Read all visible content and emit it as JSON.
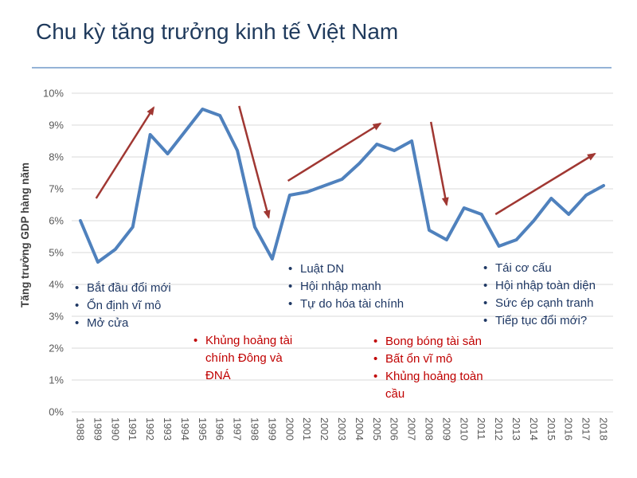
{
  "slide": {
    "title": "Chu kỳ tăng trưởng kinh tế Việt Nam",
    "title_color": "#1F3A5C",
    "divider_color": "#95B3D7",
    "background": "#FFFFFF"
  },
  "chart_data": {
    "type": "line",
    "title": "Chu kỳ tăng trưởng kinh tế Việt Nam",
    "xlabel": "",
    "ylabel": "Tăng trưởng GDP hàng năm",
    "x": [
      1988,
      1989,
      1990,
      1991,
      1992,
      1993,
      1994,
      1995,
      1996,
      1997,
      1998,
      1999,
      2000,
      2001,
      2002,
      2003,
      2004,
      2005,
      2006,
      2007,
      2008,
      2009,
      2010,
      2011,
      2012,
      2013,
      2014,
      2015,
      2016,
      2017,
      2018
    ],
    "series": [
      {
        "name": "Tăng trưởng GDP hàng năm (%)",
        "color": "#4F81BD",
        "values": [
          6.0,
          4.7,
          5.1,
          5.8,
          8.7,
          8.1,
          8.8,
          9.5,
          9.3,
          8.2,
          5.8,
          4.8,
          6.8,
          6.9,
          7.1,
          7.3,
          7.8,
          8.4,
          8.2,
          8.5,
          5.7,
          5.4,
          6.4,
          6.2,
          5.2,
          5.4,
          6.0,
          6.7,
          6.2,
          6.8,
          7.1
        ]
      }
    ],
    "ylim": [
      0,
      10
    ],
    "ytick_labels": [
      "0%",
      "1%",
      "2%",
      "3%",
      "4%",
      "5%",
      "6%",
      "7%",
      "8%",
      "9%",
      "10%"
    ],
    "grid": true,
    "legend": false,
    "gridline_color": "#D9D9D9",
    "tick_label_color": "#595959",
    "axis_title_color": "#3F3F3F",
    "arrow_color": "#A03732",
    "arrows": [
      {
        "name": "boom-1989-1992",
        "dir": "up",
        "from": {
          "x": 1988.9,
          "y": 6.7
        },
        "to": {
          "x": 1992.2,
          "y": 9.55
        }
      },
      {
        "name": "crisis-1997-1999",
        "dir": "down",
        "from": {
          "x": 1997.1,
          "y": 9.6
        },
        "to": {
          "x": 1998.8,
          "y": 6.1
        }
      },
      {
        "name": "boom-2000-2005",
        "dir": "up",
        "from": {
          "x": 1999.9,
          "y": 7.25
        },
        "to": {
          "x": 2005.2,
          "y": 9.05
        }
      },
      {
        "name": "crisis-2008-2009",
        "dir": "down",
        "from": {
          "x": 2008.1,
          "y": 9.1
        },
        "to": {
          "x": 2009.0,
          "y": 6.5
        }
      },
      {
        "name": "recovery-2012-2018",
        "dir": "up",
        "from": {
          "x": 2011.8,
          "y": 6.2
        },
        "to": {
          "x": 2017.5,
          "y": 8.1
        }
      }
    ]
  },
  "annotations": [
    {
      "id": "doi-moi",
      "color": "#1F3864",
      "items": [
        "Bắt đầu đổi mới",
        "Ổn định vĩ mô",
        "Mở cửa"
      ]
    },
    {
      "id": "asian-crisis",
      "color": "#C00000",
      "items": [
        "Khủng hoảng tài chính Đông và ĐNÁ"
      ]
    },
    {
      "id": "enterprise-law",
      "color": "#1F3864",
      "items": [
        "Luật DN",
        "Hội nhập mạnh",
        "Tự do hóa tài chính"
      ]
    },
    {
      "id": "global-crisis",
      "color": "#C00000",
      "items": [
        "Bong bóng tài sản",
        "Bất ổn vĩ mô",
        "Khủng hoảng toàn cầu"
      ]
    },
    {
      "id": "restructuring",
      "color": "#1F3864",
      "items": [
        "Tái cơ cấu",
        "Hội nhập toàn diện",
        "Sức ép cạnh tranh",
        "Tiếp tục đổi mới?"
      ]
    }
  ]
}
